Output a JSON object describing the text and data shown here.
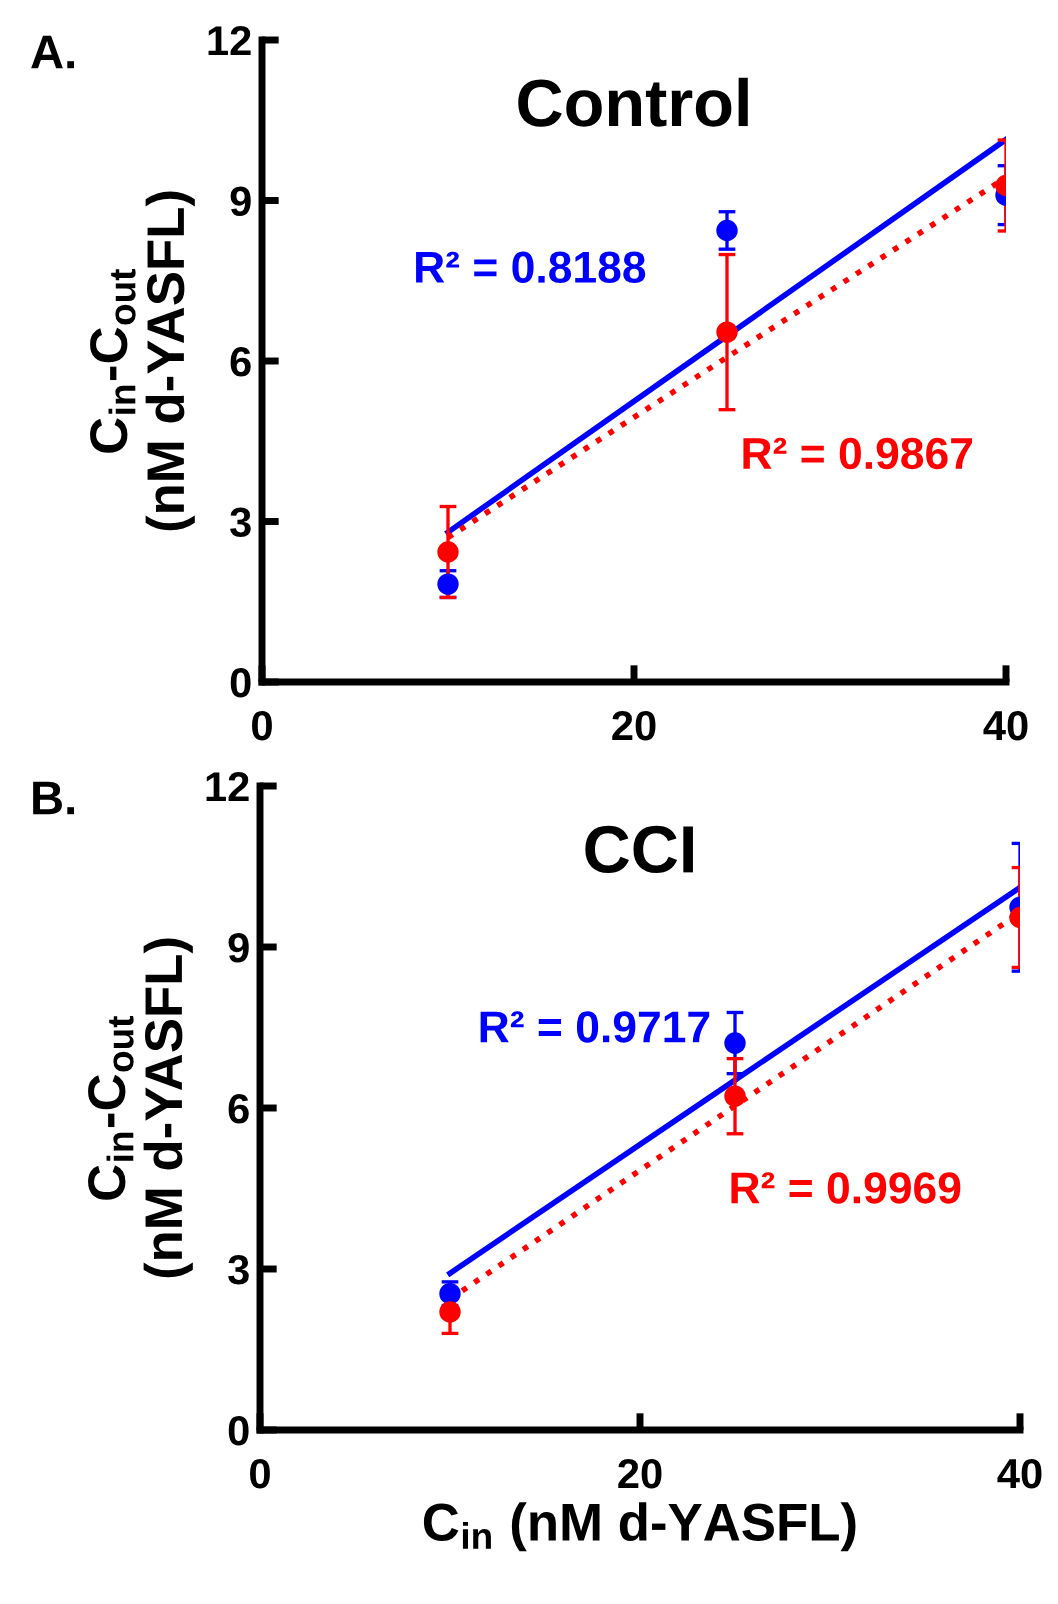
{
  "chart_data": [
    {
      "type": "scatter",
      "title": "Control",
      "ylabel": "C$_{in}$-C$_{out}$\n(nM d-YASFL)",
      "x": [
        10,
        25,
        40
      ],
      "xlim": [
        0,
        40
      ],
      "ylim": [
        0,
        12
      ],
      "xticks": [
        0,
        20,
        40
      ],
      "yticks": [
        0,
        3,
        6,
        9,
        12
      ],
      "grid": false,
      "legend": false,
      "marker": "circle",
      "series": [
        {
          "color": "#0000ff",
          "values": [
            1.83,
            8.44,
            9.1
          ],
          "errors": [
            0.25,
            0.35,
            0.55
          ]
        },
        {
          "color": "#ff0000",
          "values": [
            2.43,
            6.54,
            9.28
          ],
          "errors": [
            0.85,
            1.45,
            0.85
          ]
        },
        {
          "type": "line",
          "color": "#0000ff",
          "values": [
            2.8,
            6.47,
            10.14
          ],
          "line_style": "solid",
          "marker": "none"
        },
        {
          "type": "line",
          "color": "#ff0000",
          "values": [
            2.7,
            6.07,
            9.43
          ],
          "line_style": "dotted",
          "marker": "none"
        }
      ],
      "annotations": [
        "A.",
        "R² = 0.8188",
        "R² = 0.9867"
      ]
    },
    {
      "type": "scatter",
      "title": "CCI",
      "xlabel": "C$_{in}$ (nM d-YASFL)",
      "ylabel": "C$_{in}$-C$_{out}$\n(nM d-YASFL)",
      "x": [
        10,
        25,
        40
      ],
      "xlim": [
        0,
        40
      ],
      "ylim": [
        0,
        12
      ],
      "xticks": [
        0,
        20,
        40
      ],
      "yticks": [
        0,
        3,
        6,
        9,
        12
      ],
      "grid": false,
      "legend": false,
      "marker": "circle",
      "series": [
        {
          "color": "#0000ff",
          "values": [
            2.54,
            7.21,
            9.74
          ],
          "errors": [
            0.22,
            0.57,
            1.19
          ]
        },
        {
          "color": "#ff0000",
          "values": [
            2.2,
            6.22,
            9.55
          ],
          "errors": [
            0.4,
            0.7,
            0.93
          ]
        },
        {
          "type": "line",
          "color": "#0000ff",
          "values": [
            2.92,
            6.52,
            10.11
          ],
          "line_style": "solid",
          "marker": "none"
        },
        {
          "type": "line",
          "color": "#ff0000",
          "values": [
            2.44,
            6.04,
            9.64
          ],
          "line_style": "dotted",
          "marker": "none"
        }
      ],
      "annotations": [
        "B.",
        "R² = 0.9717",
        "R² = 0.9969"
      ]
    }
  ]
}
